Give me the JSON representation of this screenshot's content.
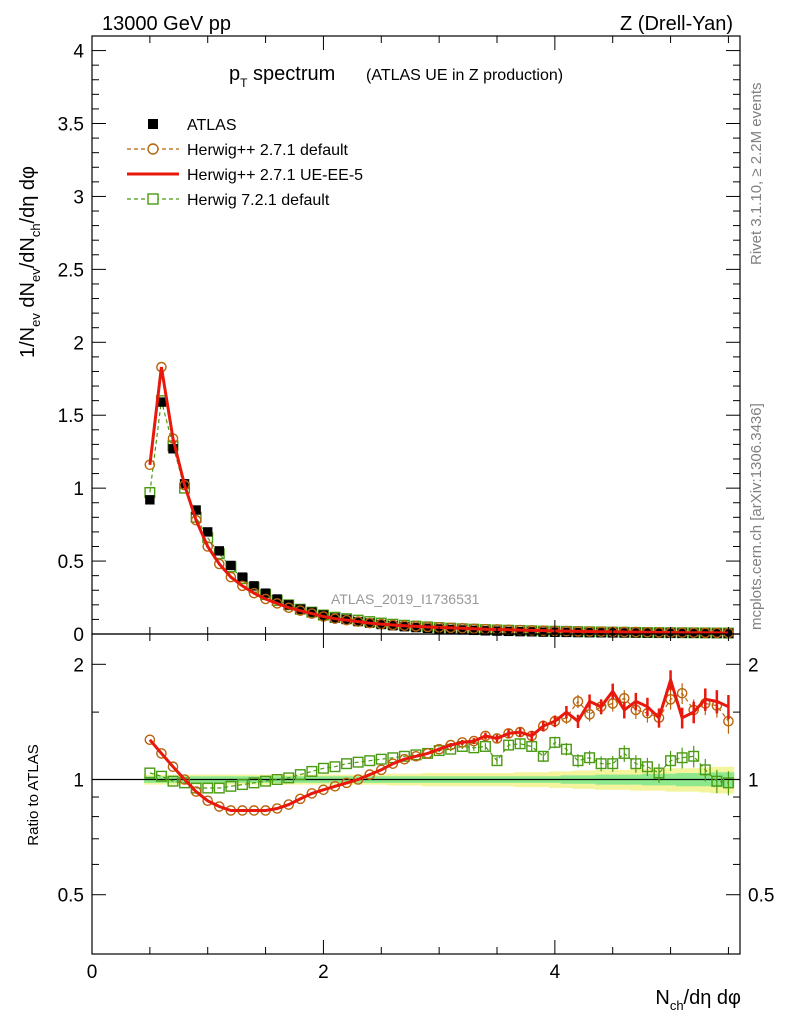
{
  "header": {
    "left": "13000 GeV pp",
    "right": "Z (Drell-Yan)"
  },
  "title": {
    "main": "p",
    "main_sub": "T",
    "main_rest": " spectrum",
    "detail": "(ATLAS UE in Z production)"
  },
  "side_labels": {
    "rivet": "Rivet 3.1.10, ≥ 2.2M events",
    "mcplots": "mcplots.cern.ch [arXiv:1306.3436]"
  },
  "watermark": "ATLAS_2019_I1736531",
  "axes": {
    "main_ylabel": "1/N_ev dN_ev/dN_ch/dη dφ",
    "ratio_ylabel": "Ratio to ATLAS",
    "xlabel": "N_ch/dη dφ",
    "main_yticks": [
      "0",
      "0.5",
      "1",
      "1.5",
      "2",
      "2.5",
      "3",
      "3.5",
      "4"
    ],
    "ratio_yticks": [
      "0.5",
      "1",
      "2"
    ],
    "xticks": [
      "0",
      "2",
      "4"
    ]
  },
  "legend": [
    {
      "label": "ATLAS",
      "color": "#000000",
      "marker": "filled-square"
    },
    {
      "label": "Herwig++ 2.7.1 default",
      "color": "#b8640c",
      "marker": "open-circle-dashed"
    },
    {
      "label": "Herwig++ 2.7.1 UE-EE-5",
      "color": "#e8180c",
      "marker": "solid-line"
    },
    {
      "label": "Herwig 7.2.1 default",
      "color": "#4a9a12",
      "marker": "open-square-dashed"
    }
  ],
  "colors": {
    "atlas": "#000000",
    "default": "#b8640c",
    "ueee5": "#e8180c",
    "h7": "#4a9a12",
    "band_inner": "#8ee88e",
    "band_outer": "#f4f49c"
  },
  "chart_data": {
    "type": "line",
    "x": [
      0.5,
      0.6,
      0.7,
      0.8,
      0.9,
      1.0,
      1.1,
      1.2,
      1.3,
      1.4,
      1.5,
      1.6,
      1.7,
      1.8,
      1.9,
      2.0,
      2.1,
      2.2,
      2.3,
      2.4,
      2.5,
      2.6,
      2.7,
      2.8,
      2.9,
      3.0,
      3.1,
      3.2,
      3.3,
      3.4,
      3.5,
      3.6,
      3.7,
      3.8,
      3.9,
      4.0,
      4.1,
      4.2,
      4.3,
      4.4,
      4.5,
      4.6,
      4.7,
      4.8,
      4.9,
      5.0,
      5.1,
      5.2,
      5.3,
      5.4,
      5.5
    ],
    "xlim": [
      0,
      5.6
    ],
    "main_ylim": [
      0,
      4.1
    ],
    "series": [
      {
        "name": "ATLAS",
        "values": [
          0.92,
          1.59,
          1.27,
          1.03,
          0.85,
          0.7,
          0.57,
          0.47,
          0.39,
          0.33,
          0.28,
          0.24,
          0.2,
          0.17,
          0.15,
          0.13,
          0.11,
          0.1,
          0.085,
          0.075,
          0.065,
          0.057,
          0.05,
          0.044,
          0.039,
          0.035,
          0.031,
          0.028,
          0.025,
          0.022,
          0.02,
          0.018,
          0.016,
          0.015,
          0.013,
          0.012,
          0.011,
          0.01,
          0.009,
          0.0085,
          0.008,
          0.0075,
          0.007,
          0.0065,
          0.006,
          0.0055,
          0.005,
          0.0048,
          0.0045,
          0.0042,
          0.004
        ]
      },
      {
        "name": "Herwig++ 2.7.1 default",
        "values": [
          1.16,
          1.83,
          1.34,
          1.02,
          0.78,
          0.6,
          0.48,
          0.39,
          0.33,
          0.28,
          0.24,
          0.21,
          0.18,
          0.16,
          0.14,
          0.12,
          0.105,
          0.095,
          0.085,
          0.075,
          0.068,
          0.062,
          0.057,
          0.052,
          0.048,
          0.045,
          0.042,
          0.039,
          0.036,
          0.033,
          0.031,
          0.029,
          0.027,
          0.025,
          0.023,
          0.021,
          0.02,
          0.018,
          0.017,
          0.016,
          0.015,
          0.014,
          0.013,
          0.012,
          0.011,
          0.01,
          0.009,
          0.0085,
          0.008,
          0.0075,
          0.007
        ]
      },
      {
        "name": "Herwig++ 2.7.1 UE-EE-5",
        "values": [
          1.16,
          1.83,
          1.34,
          1.02,
          0.78,
          0.6,
          0.48,
          0.39,
          0.33,
          0.28,
          0.24,
          0.21,
          0.18,
          0.16,
          0.14,
          0.12,
          0.105,
          0.095,
          0.085,
          0.075,
          0.068,
          0.062,
          0.057,
          0.052,
          0.048,
          0.045,
          0.042,
          0.039,
          0.036,
          0.033,
          0.031,
          0.029,
          0.027,
          0.025,
          0.023,
          0.021,
          0.02,
          0.018,
          0.017,
          0.016,
          0.015,
          0.014,
          0.013,
          0.012,
          0.011,
          0.01,
          0.009,
          0.0085,
          0.008,
          0.0075,
          0.007
        ]
      },
      {
        "name": "Herwig 7.2.1 default",
        "values": [
          0.97,
          1.6,
          1.29,
          1.0,
          0.8,
          0.66,
          0.55,
          0.46,
          0.38,
          0.32,
          0.27,
          0.23,
          0.2,
          0.17,
          0.15,
          0.13,
          0.115,
          0.105,
          0.095,
          0.085,
          0.075,
          0.067,
          0.06,
          0.054,
          0.049,
          0.044,
          0.04,
          0.036,
          0.033,
          0.03,
          0.028,
          0.026,
          0.024,
          0.022,
          0.02,
          0.019,
          0.018,
          0.016,
          0.015,
          0.014,
          0.013,
          0.012,
          0.011,
          0.01,
          0.0095,
          0.009,
          0.0085,
          0.008,
          0.0075,
          0.007,
          0.0065
        ]
      }
    ],
    "ratio": {
      "ylim": [
        0.35,
        2.4
      ],
      "log_y": true,
      "series": [
        {
          "name": "Herwig++ 2.7.1 default",
          "values": [
            1.27,
            1.17,
            1.08,
            1.0,
            0.93,
            0.88,
            0.85,
            0.83,
            0.83,
            0.83,
            0.83,
            0.84,
            0.86,
            0.89,
            0.92,
            0.94,
            0.96,
            0.98,
            1.0,
            1.03,
            1.06,
            1.1,
            1.13,
            1.15,
            1.17,
            1.2,
            1.23,
            1.25,
            1.26,
            1.3,
            1.28,
            1.32,
            1.33,
            1.3,
            1.38,
            1.42,
            1.45,
            1.6,
            1.48,
            1.55,
            1.58,
            1.63,
            1.52,
            1.49,
            1.45,
            1.62,
            1.68,
            1.52,
            1.58,
            1.56,
            1.42
          ]
        },
        {
          "name": "Herwig++ 2.7.1 UE-EE-5",
          "values": [
            1.27,
            1.17,
            1.08,
            1.0,
            0.93,
            0.88,
            0.85,
            0.83,
            0.83,
            0.83,
            0.83,
            0.84,
            0.86,
            0.89,
            0.92,
            0.94,
            0.96,
            0.98,
            1.0,
            1.03,
            1.06,
            1.1,
            1.13,
            1.15,
            1.17,
            1.2,
            1.23,
            1.25,
            1.26,
            1.3,
            1.28,
            1.32,
            1.33,
            1.3,
            1.38,
            1.42,
            1.5,
            1.42,
            1.6,
            1.55,
            1.7,
            1.52,
            1.6,
            1.55,
            1.45,
            1.82,
            1.45,
            1.5,
            1.62,
            1.6,
            1.55
          ]
        },
        {
          "name": "Herwig 7.2.1 default",
          "values": [
            1.04,
            1.02,
            0.99,
            0.98,
            0.95,
            0.95,
            0.95,
            0.96,
            0.97,
            0.98,
            0.99,
            1.0,
            1.01,
            1.03,
            1.05,
            1.07,
            1.08,
            1.1,
            1.11,
            1.12,
            1.13,
            1.14,
            1.15,
            1.16,
            1.17,
            1.19,
            1.2,
            1.22,
            1.21,
            1.22,
            1.12,
            1.23,
            1.24,
            1.22,
            1.15,
            1.25,
            1.2,
            1.12,
            1.14,
            1.1,
            1.1,
            1.17,
            1.1,
            1.08,
            1.04,
            1.12,
            1.14,
            1.15,
            1.06,
            0.99,
            0.98
          ]
        }
      ],
      "band_inner": [
        0.02,
        0.02,
        0.02,
        0.02,
        0.02,
        0.02,
        0.02,
        0.02,
        0.02,
        0.02,
        0.02,
        0.02,
        0.02,
        0.02,
        0.02,
        0.02,
        0.02,
        0.02,
        0.02,
        0.02,
        0.02,
        0.02,
        0.02,
        0.02,
        0.02,
        0.02,
        0.02,
        0.02,
        0.02,
        0.02,
        0.02,
        0.02,
        0.02,
        0.02,
        0.02,
        0.02,
        0.025,
        0.025,
        0.025,
        0.03,
        0.03,
        0.03,
        0.03,
        0.035,
        0.035,
        0.035,
        0.04,
        0.04,
        0.04,
        0.045,
        0.045
      ],
      "band_outer": [
        0.03,
        0.03,
        0.03,
        0.03,
        0.03,
        0.03,
        0.03,
        0.03,
        0.03,
        0.03,
        0.03,
        0.03,
        0.03,
        0.03,
        0.03,
        0.03,
        0.03,
        0.03,
        0.03,
        0.03,
        0.03,
        0.035,
        0.035,
        0.035,
        0.04,
        0.04,
        0.04,
        0.04,
        0.04,
        0.04,
        0.04,
        0.04,
        0.045,
        0.045,
        0.045,
        0.05,
        0.05,
        0.055,
        0.055,
        0.06,
        0.06,
        0.06,
        0.065,
        0.065,
        0.065,
        0.07,
        0.07,
        0.07,
        0.075,
        0.08,
        0.08
      ]
    }
  }
}
